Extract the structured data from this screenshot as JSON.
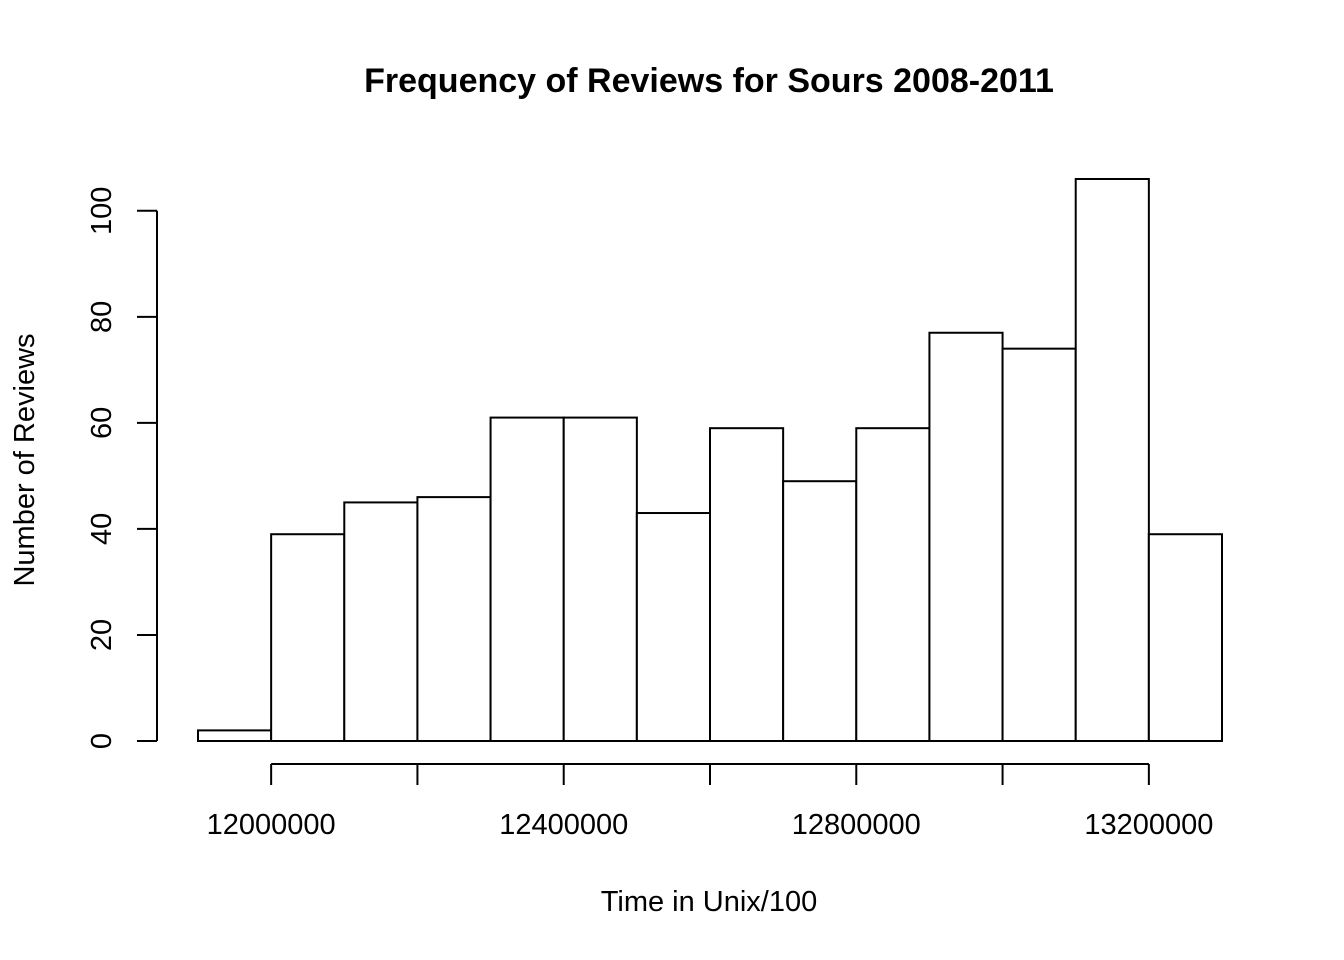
{
  "chart_data": {
    "type": "histogram",
    "title": "Frequency of Reviews for Sours 2008-2011",
    "xlabel": "Time in Unix/100",
    "ylabel": "Number of Reviews",
    "bin_edges": [
      11900000,
      12000000,
      12100000,
      12200000,
      12300000,
      12400000,
      12500000,
      12600000,
      12700000,
      12800000,
      12900000,
      13000000,
      13100000,
      13200000,
      13300000
    ],
    "counts": [
      2,
      39,
      45,
      46,
      61,
      61,
      43,
      59,
      49,
      59,
      77,
      74,
      106,
      39
    ],
    "xlim": [
      11900000,
      13300000
    ],
    "ylim": [
      0,
      106
    ],
    "x_ticks": [
      12000000,
      12200000,
      12400000,
      12600000,
      12800000,
      13000000,
      13200000
    ],
    "x_tick_labels": [
      "12000000",
      "12400000",
      "12800000",
      "13200000"
    ],
    "x_tick_label_values": [
      12000000,
      12400000,
      12800000,
      13200000
    ],
    "y_ticks": [
      0,
      20,
      40,
      60,
      80,
      100
    ],
    "y_tick_labels": [
      "0",
      "20",
      "40",
      "60",
      "80",
      "100"
    ],
    "grid": false,
    "bar_fill": "#ffffff",
    "bar_stroke": "#000000"
  }
}
